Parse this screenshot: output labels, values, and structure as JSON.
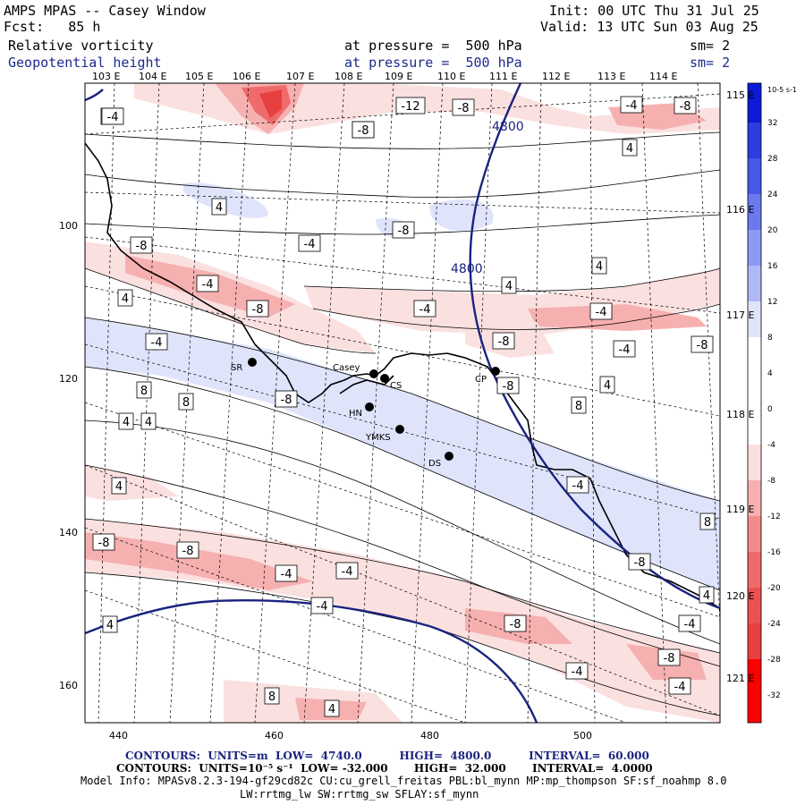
{
  "header": {
    "title": "AMPS MPAS -- Casey Window",
    "fcst": "Fcst:   85 h",
    "init": "Init: 00 UTC Thu 31 Jul 25",
    "valid": "Valid: 13 UTC Sun 03 Aug 25",
    "field1_name": "Relative vorticity",
    "field1_level": "at pressure =  500 hPa",
    "field1_sm": "sm= 2",
    "field2_name": "Geopotential height",
    "field2_level": "at pressure =  500 hPa",
    "field2_sm": "sm= 2"
  },
  "colors": {
    "height_contour": "#1a237e",
    "positive_fill": "#e84040",
    "negative_fill": "#3050e0",
    "coastline": "#000000"
  },
  "longitude_labels_top": [
    "103 E",
    "104 E",
    "105 E",
    "106 E",
    "107 E",
    "108 E",
    "109 E",
    "110 E",
    "111 E",
    "112 E",
    "113 E",
    "114 E"
  ],
  "longitude_labels_right": [
    "115 E",
    "116 E",
    "117 E",
    "118 E",
    "119 E",
    "120 E",
    "121 E"
  ],
  "x_axis_ticks": [
    "440",
    "460",
    "480",
    "500"
  ],
  "y_axis_ticks": [
    "100",
    "120",
    "140",
    "160"
  ],
  "stations": [
    {
      "name": "Casey"
    },
    {
      "name": "CS"
    },
    {
      "name": "SR"
    },
    {
      "name": "HN"
    },
    {
      "name": "YMKS"
    },
    {
      "name": "DS"
    },
    {
      "name": "CP"
    }
  ],
  "height_contour_labels": [
    "4800",
    "4800"
  ],
  "vorticity_labels": [
    "-4",
    "-12",
    "-8",
    "-4",
    "-4",
    "-8",
    "4",
    "-8",
    "-8",
    "-4",
    "4",
    "4",
    "-4",
    "-8",
    "4",
    "4",
    "-4",
    "-4",
    "-8",
    "-4",
    "-8",
    "-4",
    "8",
    "8",
    "-8",
    "4",
    "4",
    "4",
    "8",
    "-8",
    "4",
    "-4",
    "8",
    "-8",
    "-8",
    "-4",
    "-4",
    "-8",
    "-4",
    "-8",
    "-4",
    "4",
    "-8",
    "-4",
    "4",
    "8",
    "4",
    "-4",
    "-4",
    "-8"
  ],
  "colorbar": {
    "unit": "10-5 s-1",
    "ticks": [
      "32",
      "28",
      "24",
      "20",
      "16",
      "12",
      "8",
      "4",
      "0",
      "-4",
      "-8",
      "-12",
      "-16",
      "-20",
      "-24",
      "-28",
      "-32"
    ]
  },
  "footer": {
    "line1_label": "CONTOURS:  UNITS=m  LOW=  4740.0          HIGH=  4800.0          INTERVAL=  60.000",
    "line2_label": "CONTOURS:  UNITS=10⁻⁵ s⁻¹  LOW= -32.000       HIGH=  32.000       INTERVAL=  4.0000",
    "line3": "Model Info: MPASv8.2.3-194-gf29cd82c CU:cu_grell_freitas PBL:bl_mynn MP:mp_thompson SF:sf_noahmp 8.0",
    "line4": "LW:rrtmg_lw SW:rrtmg_sw SFLAY:sf_mynn"
  }
}
